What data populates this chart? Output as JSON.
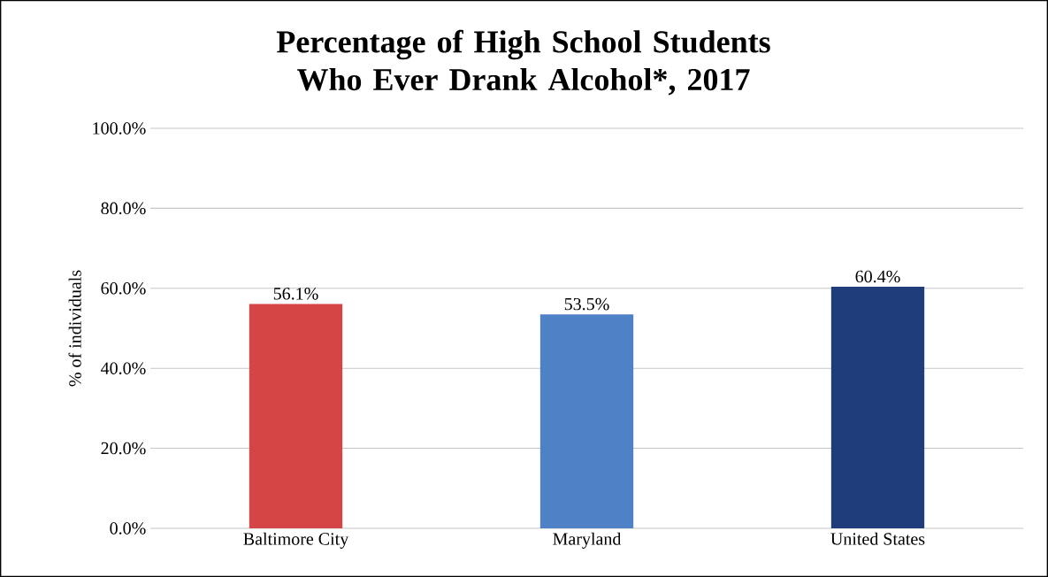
{
  "chart_data": {
    "type": "bar",
    "title": "Percentage of High School Students Who Ever Drank Alcohol*, 2017",
    "ylabel": "% of individuals",
    "categories": [
      "Baltimore City",
      "Maryland",
      "United States"
    ],
    "values": [
      56.1,
      53.5,
      60.4
    ],
    "value_labels": [
      "56.1%",
      "53.5%",
      "60.4%"
    ],
    "colors": [
      "#d64545",
      "#4f81c7",
      "#1f3d7a"
    ],
    "ylim": [
      0,
      100
    ],
    "yticks": [
      {
        "value": 0,
        "label": "0.0%"
      },
      {
        "value": 20,
        "label": "20.0%"
      },
      {
        "value": 40,
        "label": "40.0%"
      },
      {
        "value": 60,
        "label": "60.0%"
      },
      {
        "value": 80,
        "label": "80.0%"
      },
      {
        "value": 100,
        "label": "100.0%"
      }
    ],
    "grid": "y"
  }
}
